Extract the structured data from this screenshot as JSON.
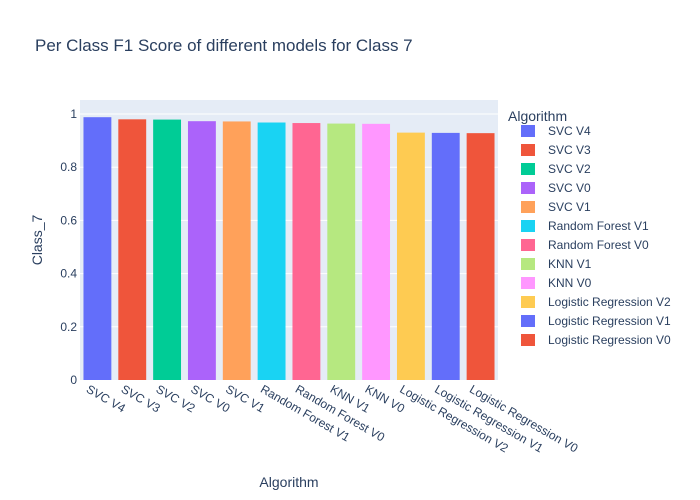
{
  "chart_data": {
    "type": "bar",
    "title": "Per Class F1 Score of different models for Class 7",
    "xlabel": "Algorithm",
    "ylabel": "Class_7",
    "ylim": [
      0,
      1
    ],
    "yticks": [
      "0",
      "0.2",
      "0.4",
      "0.6",
      "0.8",
      "1"
    ],
    "grid": true,
    "legend_title": "Algorithm",
    "legend_position": "right",
    "series": [
      {
        "name": "SVC V4",
        "category": "SVC V4",
        "value": 0.988,
        "color": "#636efa"
      },
      {
        "name": "SVC V3",
        "category": "SVC V3",
        "value": 0.98,
        "color": "#EF553B"
      },
      {
        "name": "SVC V2",
        "category": "SVC V2",
        "value": 0.979,
        "color": "#00cc96"
      },
      {
        "name": "SVC V0",
        "category": "SVC V0",
        "value": 0.973,
        "color": "#ab63fa"
      },
      {
        "name": "SVC V1",
        "category": "SVC V1",
        "value": 0.972,
        "color": "#FFA15A"
      },
      {
        "name": "Random Forest V1",
        "category": "Random Forest V1",
        "value": 0.968,
        "color": "#19d3f3"
      },
      {
        "name": "Random Forest V0",
        "category": "Random Forest V0",
        "value": 0.966,
        "color": "#FF6692"
      },
      {
        "name": "KNN V1",
        "category": "KNN V1",
        "value": 0.964,
        "color": "#B6E880"
      },
      {
        "name": "KNN V0",
        "category": "KNN V0",
        "value": 0.963,
        "color": "#FF97FF"
      },
      {
        "name": "Logistic Regression V2",
        "category": "Logistic Regression V2",
        "value": 0.93,
        "color": "#FECB52"
      },
      {
        "name": "Logistic Regression V1",
        "category": "Logistic Regression V1",
        "value": 0.929,
        "color": "#636efa"
      },
      {
        "name": "Logistic Regression V0",
        "category": "Logistic Regression V0",
        "value": 0.928,
        "color": "#EF553B"
      }
    ]
  }
}
